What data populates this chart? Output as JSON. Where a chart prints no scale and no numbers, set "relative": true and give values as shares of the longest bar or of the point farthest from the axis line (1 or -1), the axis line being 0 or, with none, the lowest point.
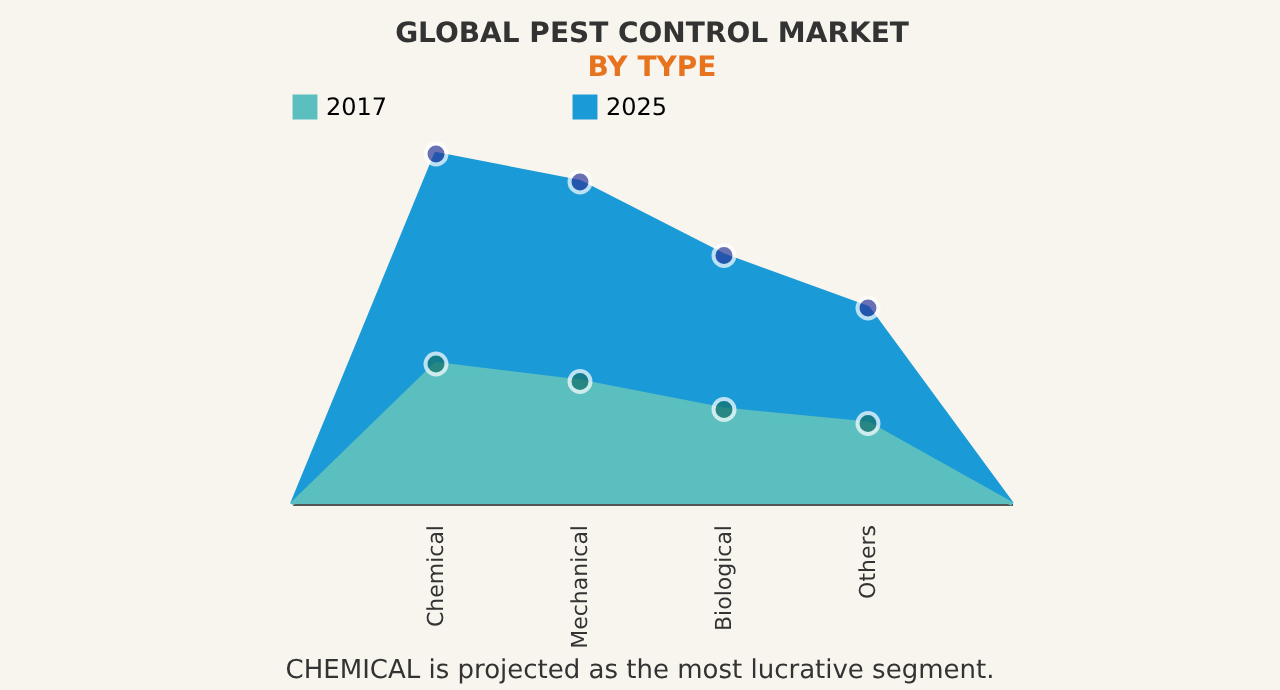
{
  "chart_data": {
    "type": "area",
    "title": "GLOBAL PEST CONTROL MARKET",
    "subtitle": "BY TYPE",
    "categories": [
      null,
      "Chemical",
      "Mechanical",
      "Biological",
      "Others",
      null
    ],
    "relative": true,
    "legend": "top",
    "marker": "circle",
    "series": [
      {
        "name": "2017",
        "color": "#5bbfc0",
        "values": [
          0,
          0.4,
          0.35,
          0.27,
          0.23,
          0
        ]
      },
      {
        "name": "2025",
        "color": "#1a9ad6",
        "values": [
          0,
          1,
          0.92,
          0.71,
          0.56,
          0
        ]
      }
    ],
    "annotations": [
      "CHEMICAL is projected as the most lucrative segment."
    ]
  }
}
